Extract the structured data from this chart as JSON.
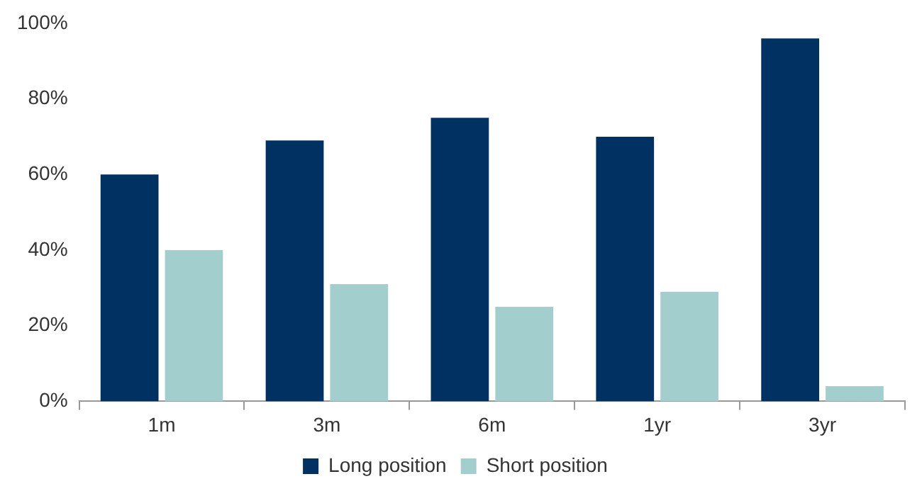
{
  "chart_data": {
    "type": "bar",
    "categories": [
      "1m",
      "3m",
      "6m",
      "1yr",
      "3yr"
    ],
    "series": [
      {
        "name": "Long position",
        "color": "#003163",
        "values": [
          60,
          69,
          75,
          70,
          96
        ]
      },
      {
        "name": "Short position",
        "color": "#a2cfcd",
        "values": [
          40,
          31,
          25,
          29,
          4
        ]
      }
    ],
    "ylim": [
      0,
      100
    ],
    "yticks": [
      {
        "value": 0,
        "label": "0%"
      },
      {
        "value": 20,
        "label": "20%"
      },
      {
        "value": 40,
        "label": "40%"
      },
      {
        "value": 60,
        "label": "60%"
      },
      {
        "value": 80,
        "label": "80%"
      },
      {
        "value": 100,
        "label": "100%"
      }
    ],
    "grid": false,
    "legend": "bottom"
  }
}
